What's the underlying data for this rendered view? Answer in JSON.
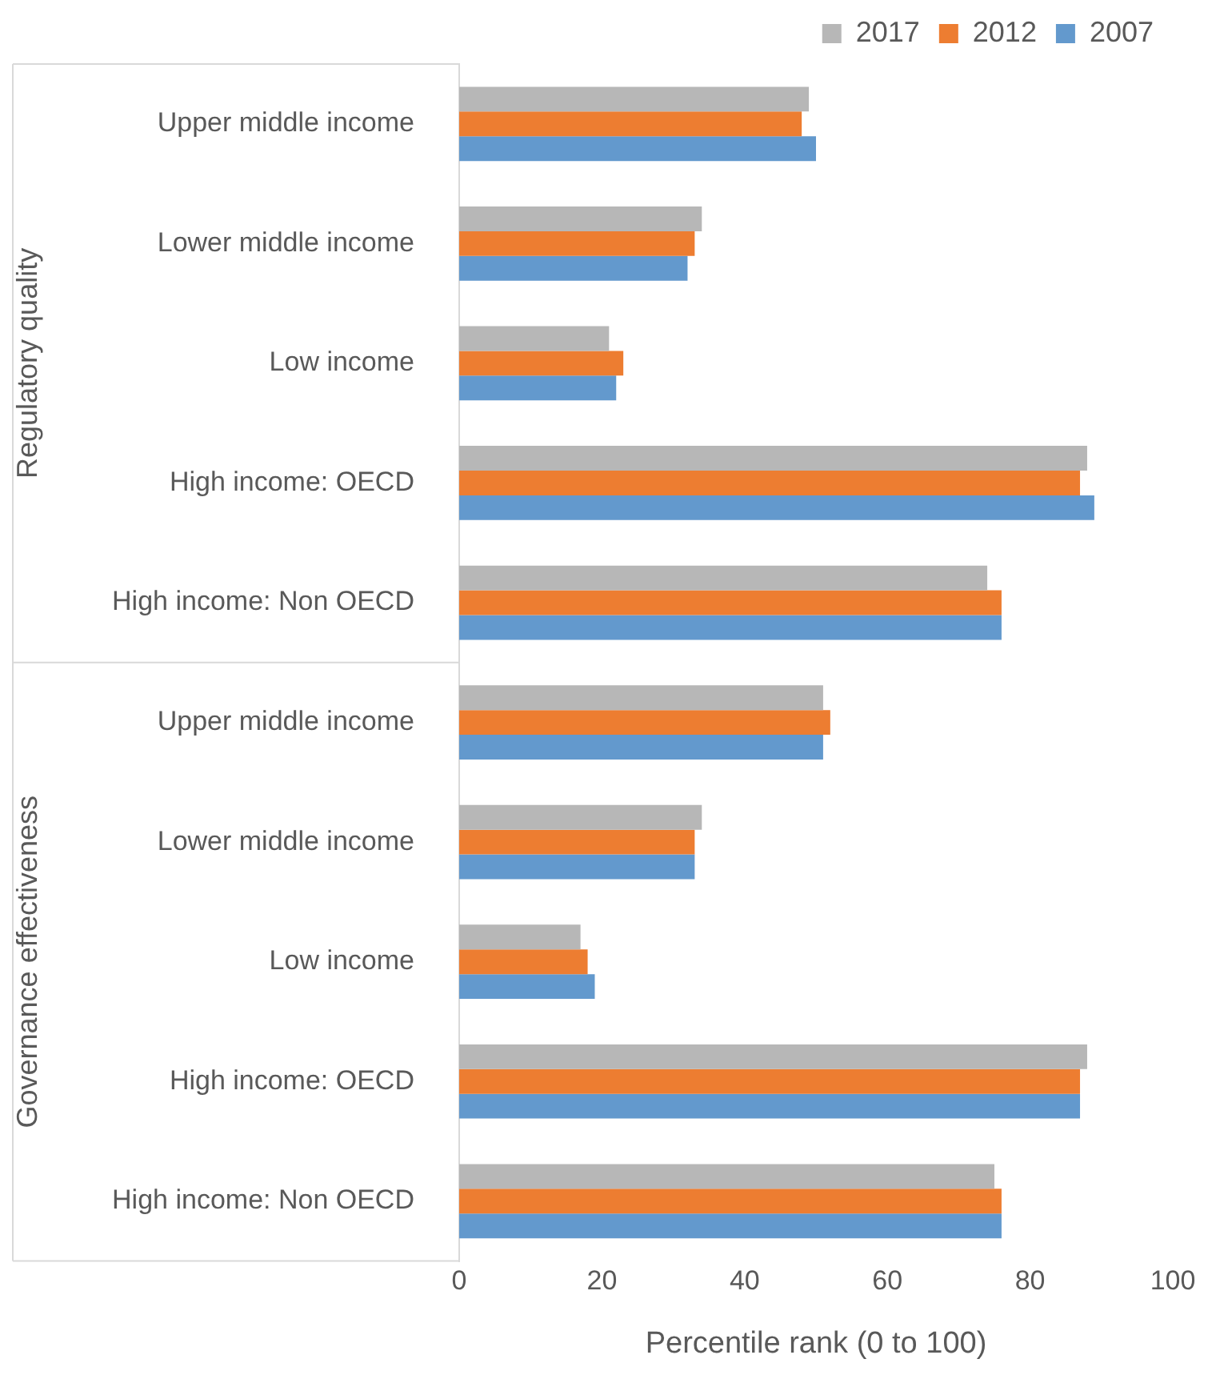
{
  "chart_data": {
    "type": "bar",
    "orientation": "horizontal",
    "xlabel": "Percentile rank (0 to 100)",
    "categories": [
      "Upper middle income",
      "Lower middle income",
      "Low income",
      "High income: OECD",
      "High income: Non OECD",
      "Upper middle income",
      "Lower middle income",
      "Low income",
      "High income: OECD",
      "High income: Non OECD"
    ],
    "series": [
      {
        "name": "2017",
        "color": "#b7b7b7",
        "values": [
          49,
          34,
          21,
          88,
          74,
          51,
          34,
          17,
          88,
          75
        ]
      },
      {
        "name": "2012",
        "color": "#ed7d31",
        "values": [
          48,
          33,
          23,
          87,
          76,
          52,
          33,
          18,
          87,
          76
        ]
      },
      {
        "name": "2007",
        "color": "#6399cd",
        "values": [
          50,
          32,
          22,
          89,
          76,
          51,
          33,
          19,
          87,
          76
        ]
      }
    ],
    "xlim": [
      0,
      100
    ],
    "xticks": [
      0,
      20,
      40,
      60,
      80,
      100
    ],
    "grid": false,
    "legend": "top right",
    "annotations": [
      "Regulatory quality",
      "Governance effectiveness"
    ]
  }
}
